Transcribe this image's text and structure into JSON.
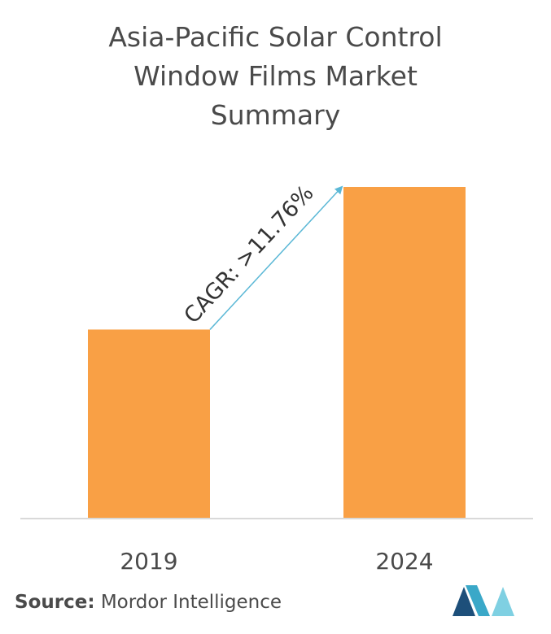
{
  "chart_data": {
    "type": "bar",
    "title_lines": [
      "Asia-Pacific Solar Control",
      "Window Films Market",
      "Summary"
    ],
    "categories": [
      "2019",
      "2024"
    ],
    "values": [
      0.57,
      1.0
    ],
    "ylim": [
      0,
      1.0
    ],
    "xlabel": "",
    "ylabel": "",
    "grid": false,
    "bar_color": "#f9a045",
    "annotation": "CAGR: >11.76%",
    "annotation_color": "#5bb8d6"
  },
  "source": {
    "label": "Source:",
    "text": "Mordor Intelligence"
  },
  "logo": {
    "icon": "mordor-intelligence-logo-icon",
    "colors": [
      "#1d4f7a",
      "#3aa8c8",
      "#7fd0e2"
    ]
  }
}
